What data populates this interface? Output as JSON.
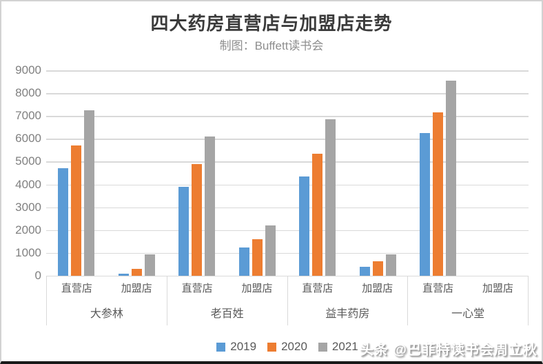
{
  "title": "四大药房直营店与加盟店走势",
  "subtitle": "制图：Buffett读书会",
  "watermark": "头条 @巴菲特读书会周立秋",
  "colors": {
    "series_2019": "#5B9BD5",
    "series_2020": "#ED7D31",
    "series_2021": "#A5A5A5",
    "gridline": "#D9D9D9",
    "y_axis_text": "#808080",
    "x_axis_text": "#595959"
  },
  "chart_data": {
    "type": "bar",
    "title": "四大药房直营店与加盟店走势",
    "subtitle": "制图：Buffett读书会",
    "categories": [
      "大参林",
      "老百姓",
      "益丰药房",
      "一心堂"
    ],
    "subcategories": [
      "直营店",
      "加盟店"
    ],
    "series": [
      {
        "name": "2019",
        "color": "#5B9BD5",
        "values": [
          [
            4700,
            100
          ],
          [
            3900,
            1250
          ],
          [
            4350,
            400
          ],
          [
            6250,
            0
          ]
        ]
      },
      {
        "name": "2020",
        "color": "#ED7D31",
        "values": [
          [
            5700,
            300
          ],
          [
            4900,
            1600
          ],
          [
            5350,
            620
          ],
          [
            7150,
            0
          ]
        ]
      },
      {
        "name": "2021",
        "color": "#A5A5A5",
        "values": [
          [
            7250,
            950
          ],
          [
            6100,
            2200
          ],
          [
            6850,
            950
          ],
          [
            8550,
            0
          ]
        ]
      }
    ],
    "ylim": [
      0,
      9000
    ],
    "yticks": [
      9000,
      8000,
      7000,
      6000,
      5000,
      4000,
      3000,
      2000,
      1000,
      0
    ],
    "grid": true,
    "legend_position": "bottom"
  }
}
